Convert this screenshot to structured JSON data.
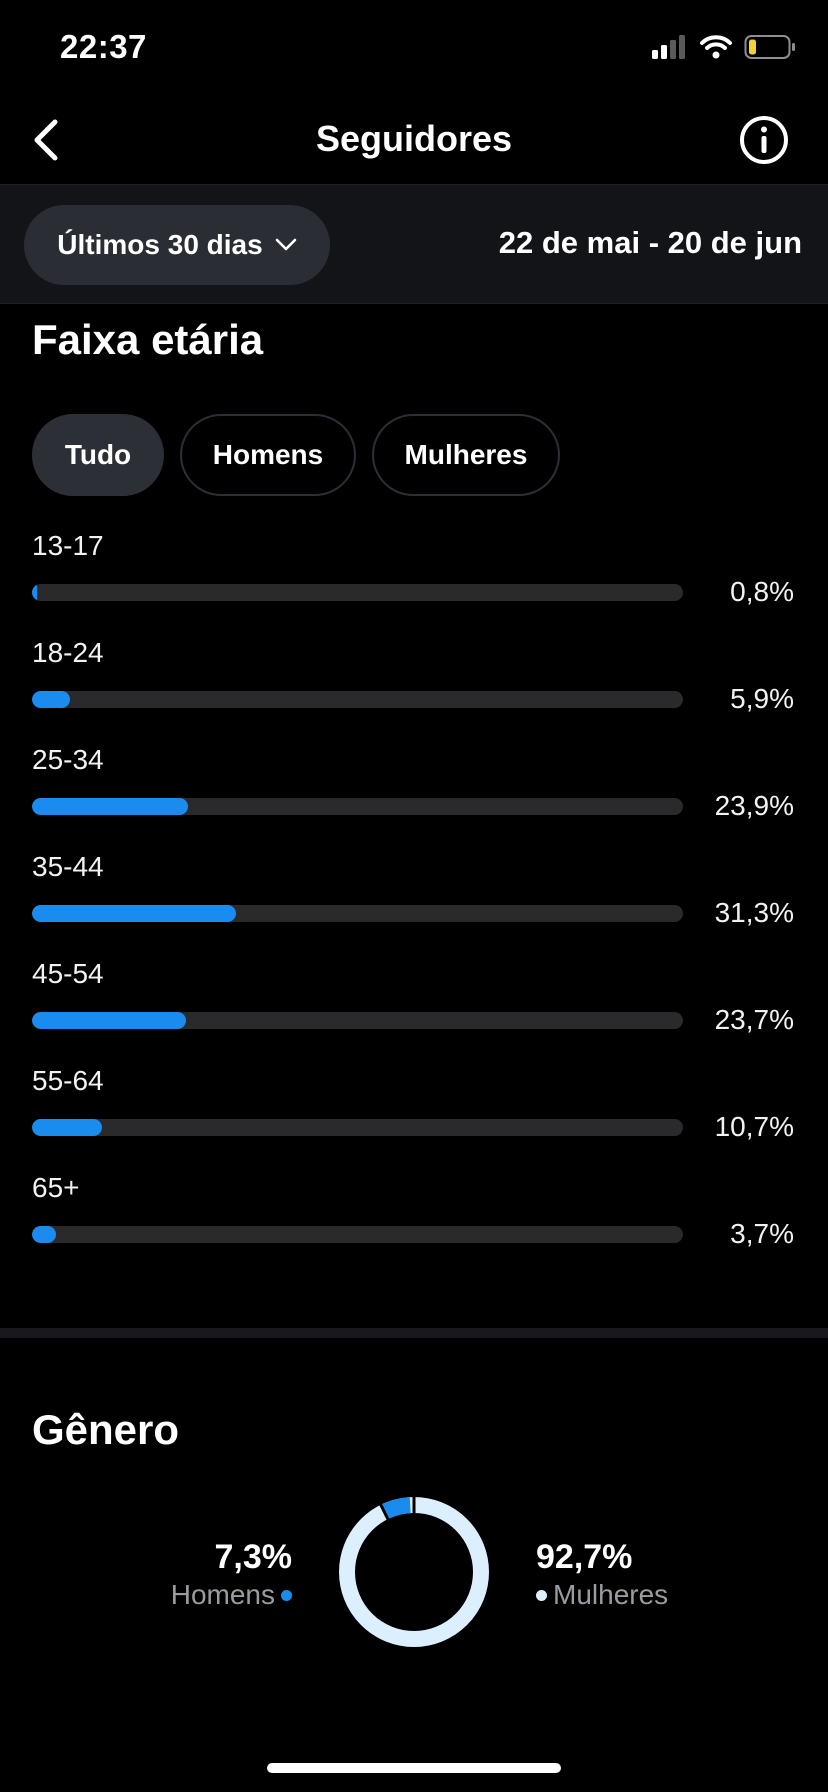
{
  "status": {
    "time": "22:37"
  },
  "header": {
    "title": "Seguidores"
  },
  "filter": {
    "period_label": "Últimos 30 dias",
    "date_range": "22 de mai - 20 de jun"
  },
  "age": {
    "title": "Faixa etária",
    "chips": [
      "Tudo",
      "Homens",
      "Mulheres"
    ],
    "selected_chip": "Tudo",
    "rows": [
      {
        "label": "13-17",
        "pct_text": "0,8%",
        "value": 0.8
      },
      {
        "label": "18-24",
        "pct_text": "5,9%",
        "value": 5.9
      },
      {
        "label": "25-34",
        "pct_text": "23,9%",
        "value": 23.9
      },
      {
        "label": "35-44",
        "pct_text": "31,3%",
        "value": 31.3
      },
      {
        "label": "45-54",
        "pct_text": "23,7%",
        "value": 23.7
      },
      {
        "label": "55-64",
        "pct_text": "10,7%",
        "value": 10.7
      },
      {
        "label": "65+",
        "pct_text": "3,7%",
        "value": 3.7
      }
    ]
  },
  "gender": {
    "title": "Gênero",
    "men": {
      "pct_text": "7,3%",
      "label": "Homens",
      "value": 7.3
    },
    "women": {
      "pct_text": "92,7%",
      "label": "Mulheres",
      "value": 92.7
    }
  },
  "colors": {
    "accent": "#1a8cef",
    "women": "#dcefff",
    "track": "#2a2a2c",
    "background": "#000000"
  },
  "icons": [
    "back-chevron-icon",
    "info-icon",
    "chevron-down-icon",
    "signal-icon",
    "wifi-icon",
    "battery-icon"
  ]
}
